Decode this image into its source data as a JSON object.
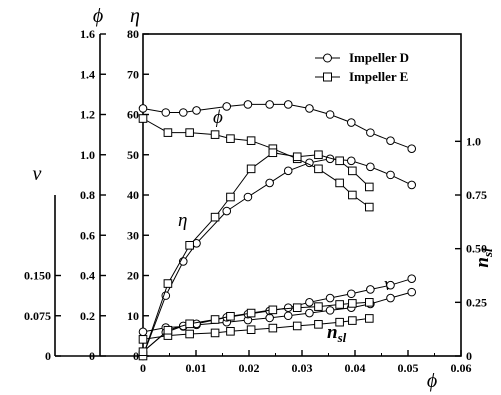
{
  "chart_data": {
    "type": "line",
    "title": "",
    "xlabel": "ϕ",
    "x_ticks": [
      "0",
      "0.01",
      "0.02",
      "0.03",
      "0.04",
      "0.05",
      "0.06"
    ],
    "xlim": [
      0,
      0.06
    ],
    "axes": {
      "phi": {
        "symbol": "ϕ",
        "ylim": [
          0,
          1.6
        ],
        "ticks": [
          "0",
          "0.2",
          "0.4",
          "0.6",
          "0.8",
          "1.0",
          "1.2",
          "1.4",
          "1.6"
        ]
      },
      "eta": {
        "symbol": "η",
        "ylim": [
          0,
          80
        ],
        "ticks": [
          "0",
          "10",
          "20",
          "30",
          "40",
          "50",
          "60",
          "70",
          "80"
        ]
      },
      "nu": {
        "symbol": "ν",
        "ylim": [
          0,
          0.3
        ],
        "ticks": [
          "0",
          "0.075",
          "0.150"
        ]
      },
      "nsl": {
        "symbol_main": "n",
        "symbol_sub": "sl",
        "ylim": [
          0,
          1.5
        ],
        "ticks": [
          "0",
          "0.25",
          "0.50",
          "0.75",
          "1.0"
        ]
      }
    },
    "legend": {
      "position": "top-right",
      "entries": [
        {
          "label": "Impeller D",
          "marker": "circle"
        },
        {
          "label": "Impeller E",
          "marker": "square"
        }
      ]
    },
    "curve_labels": {
      "phi": "ϕ",
      "eta": "η",
      "nu": "ν",
      "nsl_main": "n",
      "nsl_sub": "sl"
    },
    "series": [
      {
        "impeller": "D",
        "quantity": "phi",
        "marker": "circle",
        "x": [
          0,
          0.0043,
          0.0076,
          0.0101,
          0.0158,
          0.0198,
          0.0239,
          0.0274,
          0.0314,
          0.0353,
          0.0393,
          0.0429,
          0.0467,
          0.0507
        ],
        "y": [
          1.23,
          1.21,
          1.21,
          1.22,
          1.24,
          1.25,
          1.25,
          1.25,
          1.23,
          1.2,
          1.16,
          1.11,
          1.07,
          1.03
        ]
      },
      {
        "impeller": "D",
        "quantity": "eta",
        "marker": "circle",
        "x": [
          0,
          0.0043,
          0.0076,
          0.0101,
          0.0158,
          0.0198,
          0.0239,
          0.0274,
          0.0314,
          0.0353,
          0.0393,
          0.0429,
          0.0467,
          0.0507
        ],
        "y": [
          0,
          15,
          23.5,
          28,
          36,
          39.5,
          43,
          46,
          48,
          49,
          48.5,
          47,
          45,
          42.5
        ]
      },
      {
        "impeller": "D",
        "quantity": "nu",
        "marker": "circle",
        "x": [
          0,
          0.0043,
          0.0076,
          0.0101,
          0.0158,
          0.0198,
          0.0239,
          0.0274,
          0.0314,
          0.0353,
          0.0393,
          0.0429,
          0.0467,
          0.0507
        ],
        "y": [
          0.045,
          0.053,
          0.055,
          0.058,
          0.063,
          0.067,
          0.071,
          0.075,
          0.08,
          0.085,
          0.09,
          0.097,
          0.108,
          0.119
        ]
      },
      {
        "impeller": "D",
        "quantity": "nsl",
        "marker": "circle",
        "x": [
          0,
          0.0043,
          0.0076,
          0.0101,
          0.0158,
          0.0198,
          0.0239,
          0.0274,
          0.0314,
          0.0353,
          0.0393,
          0.0429,
          0.0467,
          0.0507
        ],
        "y": [
          0.02,
          0.11,
          0.14,
          0.15,
          0.18,
          0.195,
          0.21,
          0.225,
          0.25,
          0.27,
          0.29,
          0.31,
          0.33,
          0.36
        ]
      },
      {
        "impeller": "E",
        "quantity": "phi",
        "marker": "square",
        "x": [
          0,
          0.0047,
          0.0088,
          0.0136,
          0.0165,
          0.0204,
          0.0245,
          0.0291,
          0.0331,
          0.0371,
          0.0395,
          0.0427
        ],
        "y": [
          1.18,
          1.11,
          1.11,
          1.1,
          1.08,
          1.07,
          1.03,
          0.98,
          0.93,
          0.86,
          0.8,
          0.74
        ]
      },
      {
        "impeller": "E",
        "quantity": "eta",
        "marker": "square",
        "x": [
          0,
          0.0047,
          0.0088,
          0.0136,
          0.0165,
          0.0204,
          0.0245,
          0.0291,
          0.0331,
          0.0371,
          0.0395,
          0.0427
        ],
        "y": [
          0,
          18,
          27.5,
          34.5,
          39.5,
          46.5,
          50.5,
          49.5,
          50,
          48.5,
          46,
          42
        ]
      },
      {
        "impeller": "E",
        "quantity": "nu",
        "marker": "square",
        "x": [
          0,
          0.0047,
          0.0088,
          0.0136,
          0.0165,
          0.0204,
          0.0245,
          0.0291,
          0.0331,
          0.0371,
          0.0395,
          0.0427
        ],
        "y": [
          0.031,
          0.038,
          0.041,
          0.043,
          0.046,
          0.049,
          0.052,
          0.056,
          0.059,
          0.063,
          0.066,
          0.07
        ]
      },
      {
        "impeller": "E",
        "quantity": "nsl",
        "marker": "square",
        "x": [
          0,
          0.0047,
          0.0088,
          0.0136,
          0.0165,
          0.0204,
          0.0245,
          0.0291,
          0.0331,
          0.0371,
          0.0395,
          0.0427
        ],
        "y": [
          0.02,
          0.12,
          0.15,
          0.17,
          0.185,
          0.2,
          0.215,
          0.225,
          0.23,
          0.24,
          0.245,
          0.25
        ]
      }
    ]
  }
}
